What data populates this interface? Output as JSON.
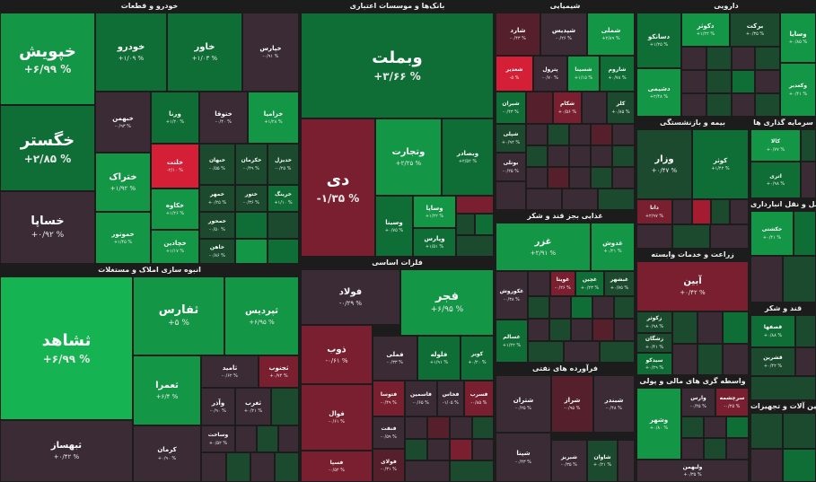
{
  "sectors": {
    "khodro": "خودرو و قطعات",
    "banks": "بانک‌ها و موسسات اعتباری",
    "shimiaei": "شیمیایی",
    "darooei": "دارویی",
    "anbooh": "انبوه سازی املاک و مستغلات",
    "felezat": "فلزات اساسی",
    "ghazaei": "غذایی بجز قند و شکر",
    "naft": "فرآورده های نفتی",
    "bimeh": "بیمه و بازنشستگی",
    "sarmayeh": "سرمایه گذاری ها",
    "zeraat": "زراعت و خدمات وابسته",
    "vaseteh": "واسطه گری های مالی و پولی",
    "hamlonaghl": "حمل و نقل انبارداری",
    "ghand": "قند و شکر",
    "mashinalat": "ماشین آلات و تجهیزات"
  },
  "tiles": {
    "khepoosh": {
      "name": "خپویش",
      "pct": "+۶/۹۹ %"
    },
    "khodro": {
      "name": "خودرو",
      "pct": "+۱/۰۹ %"
    },
    "khavar": {
      "name": "خاور",
      "pct": "+۱/۰۳ %"
    },
    "khepars": {
      "name": "خپارس",
      "pct": "-۰/۹۱ %"
    },
    "khegostar": {
      "name": "خگستر",
      "pct": "+۲/۸۵ %"
    },
    "khebahman": {
      "name": "خبهمن",
      "pct": "-۰/۹۳ %"
    },
    "vorna": {
      "name": "ورنا",
      "pct": "+۱/۲۰ %"
    },
    "khetoofa": {
      "name": "ختوقا",
      "pct": "-۰/۴۰ %"
    },
    "khezamia": {
      "name": "خزامیا",
      "pct": "+۱/۲۸ %"
    },
    "khetrak": {
      "name": "ختراک",
      "pct": "+۱/۹۲ %"
    },
    "khelent": {
      "name": "خلنت",
      "pct": "-۲/۱۰ %"
    },
    "khebahan": {
      "name": "خبهان",
      "pct": "-۰/۵۵ %"
    },
    "khekarman": {
      "name": "خکرمان",
      "pct": "-۰/۴۹ %"
    },
    "khedizel": {
      "name": "خدیزل",
      "pct": "-۰/۲۵ %"
    },
    "khekaveh": {
      "name": "خکاوه",
      "pct": "+۱/۲۶ %"
    },
    "khomhor": {
      "name": "خمهر",
      "pct": "+۰/۲۵ %"
    },
    "khoteir": {
      "name": "ختور",
      "pct": "-۰/۳۶ %"
    },
    "kherinag": {
      "name": "خرینگ",
      "pct": "+۱/۱۰ %"
    },
    "khesapa": {
      "name": "خساپا",
      "pct": "+۰/۹۲ %"
    },
    "khomootor": {
      "name": "خموتور",
      "pct": "+۱/۴۵ %"
    },
    "khechadin": {
      "name": "خچادین",
      "pct": "+۱/۱۷ %"
    },
    "khemasir": {
      "name": "خمحور",
      "pct": "-۰/۵۰ %"
    },
    "khaban": {
      "name": "خاهن",
      "pct": "-۰/۸۶ %"
    },
    "vabmelat": {
      "name": "وبملت",
      "pct": "+۳/۶۶ %"
    },
    "dey": {
      "name": "دی",
      "pct": "-۱/۳۵ %"
    },
    "vatejarat": {
      "name": "وتجارت",
      "pct": "+۲/۲۵ %"
    },
    "vabsader": {
      "name": "وبصادر",
      "pct": "+۲/۵۲ %"
    },
    "vasapa": {
      "name": "وساپا",
      "pct": "+۱/۲۲ %"
    },
    "vasina": {
      "name": "وسینا",
      "pct": "+۰/۷۵ %"
    },
    "vapars": {
      "name": "وپارس",
      "pct": "+۱/۵۱ %"
    },
    "shared": {
      "name": "شارد",
      "pct": "-۰/۴۳ %"
    },
    "shepdis": {
      "name": "شپدیس",
      "pct": "-۰/۲۶ %"
    },
    "shemli": {
      "name": "شملی",
      "pct": "+۲/۸۹ %"
    },
    "shebandar": {
      "name": "شغدیر",
      "pct": "-۵ %"
    },
    "shepetrol": {
      "name": "پترول",
      "pct": "-۰/۷۰ %"
    },
    "shesina": {
      "name": "شسینا",
      "pct": "+۱/۱۵ %"
    },
    "sharoom": {
      "name": "شاروم",
      "pct": "+۰/۷۸ %"
    },
    "shiran": {
      "name": "شیران",
      "pct": "-۰/۴۳ %"
    },
    "shekam": {
      "name": "شکام",
      "pct": "+۰/۵۶ %"
    },
    "kaler": {
      "name": "کلر",
      "pct": "+۰/۸۵ %"
    },
    "shepli": {
      "name": "شپلی",
      "pct": "+۰/۹۲ %"
    },
    "shepaksa": {
      "name": "شپاکسا",
      "pct": "-۰/۳۵ %"
    },
    "shavan": {
      "name": "شوان",
      "pct": "-۰/۵۷ %"
    },
    "bootali": {
      "name": "بوتلی",
      "pct": "-۰/۲۵ %"
    },
    "dakosar": {
      "name": "دکوثر",
      "pct": "+۱/۲۲ %"
    },
    "barekat": {
      "name": "برکت",
      "pct": "+۰/۳۵ %"
    },
    "danako": {
      "name": "دسانکو",
      "pct": "+۱/۲۵ %"
    },
    "dashimi": {
      "name": "دشیمی",
      "pct": "+۲/۴۸ %"
    },
    "vasapa2": {
      "name": "وسایا",
      "pct": "+۰/۸۵ %"
    },
    "vaghadir": {
      "name": "وکغدیر",
      "pct": "+۰/۴۱ %"
    },
    "sashahed": {
      "name": "ثشاهد",
      "pct": "+۶/۹۹ %"
    },
    "safars": {
      "name": "ثفارس",
      "pct": "+۵ %"
    },
    "sapardis": {
      "name": "ثپردیس",
      "pct": "+۶/۹۵ %"
    },
    "saomran": {
      "name": "ثعمرا",
      "pct": "+۶/۴ %"
    },
    "satamid": {
      "name": "ثامید",
      "pct": "-۰/۶۲ %"
    },
    "sajonoob": {
      "name": "ثجنوب",
      "pct": "+۰/۷۴ %"
    },
    "savaghar": {
      "name": "وآذر",
      "pct": "-۰/۹۰ %"
    },
    "saghrab": {
      "name": "ثغرب",
      "pct": "+۰/۲۱ %"
    },
    "sabahsaz": {
      "name": "ثبهساز",
      "pct": "+۰/۴۲ %"
    },
    "sakerman": {
      "name": "کرمان",
      "pct": "+۰/۹۰ %"
    },
    "sasakht": {
      "name": "وساخت",
      "pct": "+۰/۵۲ %"
    },
    "foolad": {
      "name": "فولاد",
      "pct": "-۰/۲۹ %"
    },
    "fajr": {
      "name": "فجر",
      "pct": "+۶/۹۵ %"
    },
    "zob": {
      "name": "ذوب",
      "pct": "-۰/۶۱ %"
    },
    "femeli": {
      "name": "فملی",
      "pct": "-۰/۳۳ %"
    },
    "felooleh": {
      "name": "فلوله",
      "pct": "+۱/۹۱ %"
    },
    "kaveh": {
      "name": "کویر",
      "pct": "+۰/۲۰ %"
    },
    "foval": {
      "name": "فوال",
      "pct": "-۰/۶۱ %"
    },
    "fakhas": {
      "name": "فخاس",
      "pct": "-۱/۰۵ %"
    },
    "ghosabaf": {
      "name": "فسرب",
      "pct": "-۰/۸۵ %"
    },
    "festeel": {
      "name": "فنفت",
      "pct": "-۰/۵۹ %"
    },
    "fasapa": {
      "name": "فسپا",
      "pct": "-۰/۵۲ %"
    },
    "faserb": {
      "name": "فولای",
      "pct": "-۰/۳۱ %"
    },
    "faasmin": {
      "name": "فاسمین",
      "pct": "-۰/۶۵ %"
    },
    "fesoos": {
      "name": "فتوسا",
      "pct": "-۰/۴۹ %"
    },
    "ghezar": {
      "name": "غزر",
      "pct": "+۲/۹۱ %"
    },
    "ghadosh": {
      "name": "غدوش",
      "pct": "+۰/۲۱ %"
    },
    "ghekoorosh": {
      "name": "غکوروش",
      "pct": "-۰/۳۸ %"
    },
    "ghaviyata": {
      "name": "غویتا",
      "pct": "-۰/۲۶ %"
    },
    "ghechin": {
      "name": "غچین",
      "pct": "+۰/۲۳ %"
    },
    "ghebeshahr": {
      "name": "غبشهر",
      "pct": "+۰/۷۵ %"
    },
    "ghesalam": {
      "name": "غسالم",
      "pct": "+۱/۲۲ %"
    },
    "shetran": {
      "name": "شتران",
      "pct": "-۰/۲۵ %"
    },
    "sheraz": {
      "name": "شراز",
      "pct": "-۰/۹۵ %"
    },
    "shebandar2": {
      "name": "شبندر",
      "pct": "-۰/۴۸ %"
    },
    "shepna": {
      "name": "شپنا",
      "pct": "-۰/۴۳ %"
    },
    "shavan2": {
      "name": "شاوان",
      "pct": "+۰/۲۱ %"
    },
    "shebriz": {
      "name": "شبریز",
      "pct": "-۰/۳۵ %"
    },
    "vazar": {
      "name": "وزار",
      "pct": "+۰/۴۷ %"
    },
    "kosar": {
      "name": "کوثر",
      "pct": "+۱/۴۲ %"
    },
    "dana": {
      "name": "دانا",
      "pct": "+۲/۹۷ %"
    },
    "kala": {
      "name": "کالا",
      "pct": "+۰/۷۷ %"
    },
    "atrira": {
      "name": "اتری",
      "pct": "+۰/۹۸ %"
    },
    "abin": {
      "name": "آبین",
      "pct": "+۰/۴۲ %"
    },
    "zakosar": {
      "name": "زکوثر",
      "pct": "+۰/۹۸ %"
    },
    "zaghian": {
      "name": "زشگان",
      "pct": "+۰/۴۱ %"
    },
    "seyed": {
      "name": "سیدکو",
      "pct": "+۰/۲۹ %"
    },
    "hakeshti": {
      "name": "حکشتی",
      "pct": "+۰/۴۱ %"
    },
    "vashahr": {
      "name": "وشهر",
      "pct": "+۰/۸۰ %"
    },
    "varas": {
      "name": "وارس",
      "pct": "-۰/۴۵ %"
    },
    "saracheshmeh": {
      "name": "سرچشمه",
      "pct": "-۰/۲۵ %"
    },
    "vabahman": {
      "name": "ولبهمن",
      "pct": "+۰/۳۵ %"
    },
    "ghasfaha": {
      "name": "قصفها",
      "pct": "+۰/۸۸ %"
    },
    "ghashirin": {
      "name": "قشرین",
      "pct": "+۰/۴۲ %"
    }
  }
}
